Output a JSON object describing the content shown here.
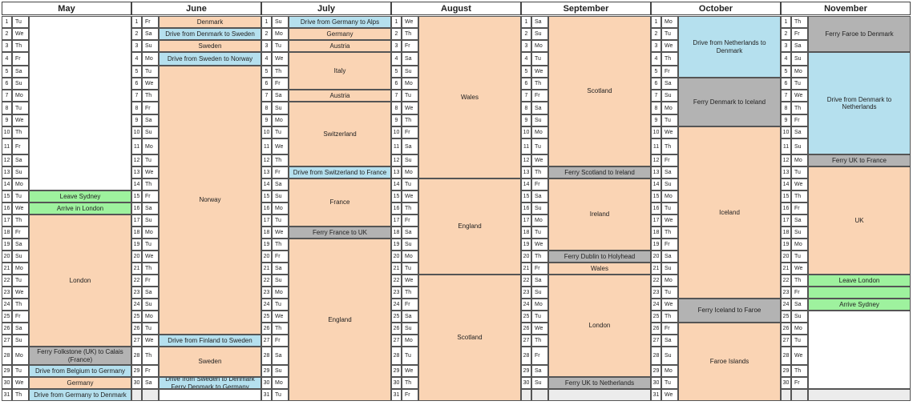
{
  "colors": {
    "travel": "#fad4b4",
    "drive": "#b5e0ee",
    "ferry": "#b3b3b3",
    "flight": "#9ef29e"
  },
  "months": [
    {
      "name": "May",
      "days": [
        [
          "1",
          "Tu"
        ],
        [
          "2",
          "We"
        ],
        [
          "3",
          "Th"
        ],
        [
          "4",
          "Fr"
        ],
        [
          "5",
          "Sa"
        ],
        [
          "6",
          "Su"
        ],
        [
          "7",
          "Mo"
        ],
        [
          "8",
          "Tu"
        ],
        [
          "9",
          "We"
        ],
        [
          "10",
          "Th"
        ],
        [
          "11",
          "Fr"
        ],
        [
          "12",
          "Sa"
        ],
        [
          "13",
          "Su"
        ],
        [
          "14",
          "Mo"
        ],
        [
          "15",
          "Tu"
        ],
        [
          "16",
          "We"
        ],
        [
          "17",
          "Th"
        ],
        [
          "18",
          "Fr"
        ],
        [
          "19",
          "Sa"
        ],
        [
          "20",
          "Su"
        ],
        [
          "21",
          "Mo"
        ],
        [
          "22",
          "Tu"
        ],
        [
          "23",
          "We"
        ],
        [
          "24",
          "Th"
        ],
        [
          "25",
          "Fr"
        ],
        [
          "26",
          "Sa"
        ],
        [
          "27",
          "Su"
        ],
        [
          "28",
          "Mo"
        ],
        [
          "29",
          "Tu"
        ],
        [
          "30",
          "We"
        ],
        [
          "31",
          "Th"
        ]
      ],
      "events": [
        {
          "start": 1,
          "span": 14,
          "label": "",
          "type": "blank"
        },
        {
          "start": 15,
          "span": 1,
          "label": "Leave Sydney",
          "type": "flight"
        },
        {
          "start": 16,
          "span": 1,
          "label": "Arrive in London",
          "type": "flight"
        },
        {
          "start": 17,
          "span": 11,
          "label": "London",
          "type": "travel"
        },
        {
          "start": 28,
          "span": 1,
          "label": "Ferry Folkstone (UK) to Calais (France)",
          "type": "ferry"
        },
        {
          "start": 29,
          "span": 1,
          "label": "Drive from Belgium to Germany",
          "type": "drive"
        },
        {
          "start": 30,
          "span": 1,
          "label": "Germany",
          "type": "travel"
        },
        {
          "start": 31,
          "span": 1,
          "label": "Drive from Germany to Denmark",
          "type": "drive"
        }
      ]
    },
    {
      "name": "June",
      "days": [
        [
          "1",
          "Fr"
        ],
        [
          "2",
          "Sa"
        ],
        [
          "3",
          "Su"
        ],
        [
          "4",
          "Mo"
        ],
        [
          "5",
          "Tu"
        ],
        [
          "6",
          "We"
        ],
        [
          "7",
          "Th"
        ],
        [
          "8",
          "Fr"
        ],
        [
          "9",
          "Sa"
        ],
        [
          "10",
          "Su"
        ],
        [
          "11",
          "Mo"
        ],
        [
          "12",
          "Tu"
        ],
        [
          "13",
          "We"
        ],
        [
          "14",
          "Th"
        ],
        [
          "15",
          "Fr"
        ],
        [
          "16",
          "Sa"
        ],
        [
          "17",
          "Su"
        ],
        [
          "18",
          "Mo"
        ],
        [
          "19",
          "Tu"
        ],
        [
          "20",
          "We"
        ],
        [
          "21",
          "Th"
        ],
        [
          "22",
          "Fr"
        ],
        [
          "23",
          "Sa"
        ],
        [
          "24",
          "Su"
        ],
        [
          "25",
          "Mo"
        ],
        [
          "26",
          "Tu"
        ],
        [
          "27",
          "We"
        ],
        [
          "28",
          "Th"
        ],
        [
          "29",
          "Fr"
        ],
        [
          "30",
          "Sa"
        ],
        [
          "",
          ""
        ]
      ],
      "events": [
        {
          "start": 1,
          "span": 1,
          "label": "Denmark",
          "type": "travel"
        },
        {
          "start": 2,
          "span": 1,
          "label": "Drive from Denmark to Sweden",
          "type": "drive"
        },
        {
          "start": 3,
          "span": 1,
          "label": "Sweden",
          "type": "travel"
        },
        {
          "start": 4,
          "span": 1,
          "label": "Drive from Sweden to Norway",
          "type": "drive"
        },
        {
          "start": 5,
          "span": 22,
          "label": "Norway",
          "type": "travel"
        },
        {
          "start": 27,
          "span": 1,
          "label": "Drive from Finland to Sweden",
          "type": "drive"
        },
        {
          "start": 28,
          "span": 2,
          "label": "Sweden",
          "type": "travel"
        },
        {
          "start": 30,
          "span": 1,
          "label": "Drive from Sweden to Denmark\nFerry Denmark to Germany",
          "type": "drive"
        },
        {
          "start": 31,
          "span": 1,
          "label": "",
          "type": "blank"
        }
      ]
    },
    {
      "name": "July",
      "days": [
        [
          "1",
          "Su"
        ],
        [
          "2",
          "Mo"
        ],
        [
          "3",
          "Tu"
        ],
        [
          "4",
          "We"
        ],
        [
          "5",
          "Th"
        ],
        [
          "6",
          "Fr"
        ],
        [
          "7",
          "Sa"
        ],
        [
          "8",
          "Su"
        ],
        [
          "9",
          "Mo"
        ],
        [
          "10",
          "Tu"
        ],
        [
          "11",
          "We"
        ],
        [
          "12",
          "Th"
        ],
        [
          "13",
          "Fr"
        ],
        [
          "14",
          "Sa"
        ],
        [
          "15",
          "Su"
        ],
        [
          "16",
          "Mo"
        ],
        [
          "17",
          "Tu"
        ],
        [
          "18",
          "We"
        ],
        [
          "19",
          "Th"
        ],
        [
          "20",
          "Fr"
        ],
        [
          "21",
          "Sa"
        ],
        [
          "22",
          "Su"
        ],
        [
          "23",
          "Mo"
        ],
        [
          "24",
          "Tu"
        ],
        [
          "25",
          "We"
        ],
        [
          "26",
          "Th"
        ],
        [
          "27",
          "Fr"
        ],
        [
          "28",
          "Sa"
        ],
        [
          "29",
          "Su"
        ],
        [
          "30",
          "Mo"
        ],
        [
          "31",
          "Tu"
        ]
      ],
      "events": [
        {
          "start": 1,
          "span": 1,
          "label": "Drive from Germany to Alps",
          "type": "drive"
        },
        {
          "start": 2,
          "span": 1,
          "label": "Germany",
          "type": "travel"
        },
        {
          "start": 3,
          "span": 1,
          "label": "Austria",
          "type": "travel"
        },
        {
          "start": 4,
          "span": 3,
          "label": "Italy",
          "type": "travel"
        },
        {
          "start": 7,
          "span": 1,
          "label": "Austria",
          "type": "travel"
        },
        {
          "start": 8,
          "span": 5,
          "label": "Switzerland",
          "type": "travel"
        },
        {
          "start": 13,
          "span": 1,
          "label": "Drive from Switzerland to France",
          "type": "drive"
        },
        {
          "start": 14,
          "span": 4,
          "label": "France",
          "type": "travel"
        },
        {
          "start": 18,
          "span": 1,
          "label": "Ferry France to UK",
          "type": "ferry"
        },
        {
          "start": 19,
          "span": 13,
          "label": "England",
          "type": "travel"
        }
      ]
    },
    {
      "name": "August",
      "days": [
        [
          "1",
          "We"
        ],
        [
          "2",
          "Th"
        ],
        [
          "3",
          "Fr"
        ],
        [
          "4",
          "Sa"
        ],
        [
          "5",
          "Su"
        ],
        [
          "6",
          "Mo"
        ],
        [
          "7",
          "Tu"
        ],
        [
          "8",
          "We"
        ],
        [
          "9",
          "Th"
        ],
        [
          "10",
          "Fr"
        ],
        [
          "11",
          "Sa"
        ],
        [
          "12",
          "Su"
        ],
        [
          "13",
          "Mo"
        ],
        [
          "14",
          "Tu"
        ],
        [
          "15",
          "We"
        ],
        [
          "16",
          "Th"
        ],
        [
          "17",
          "Fr"
        ],
        [
          "18",
          "Sa"
        ],
        [
          "19",
          "Su"
        ],
        [
          "20",
          "Mo"
        ],
        [
          "21",
          "Tu"
        ],
        [
          "22",
          "We"
        ],
        [
          "23",
          "Th"
        ],
        [
          "24",
          "Fr"
        ],
        [
          "25",
          "Sa"
        ],
        [
          "26",
          "Su"
        ],
        [
          "27",
          "Mo"
        ],
        [
          "28",
          "Tu"
        ],
        [
          "29",
          "We"
        ],
        [
          "30",
          "Th"
        ],
        [
          "31",
          "Fr"
        ]
      ],
      "events": [
        {
          "start": 1,
          "span": 13,
          "label": "Wales",
          "type": "travel"
        },
        {
          "start": 14,
          "span": 8,
          "label": "England",
          "type": "travel"
        },
        {
          "start": 22,
          "span": 10,
          "label": "Scotland",
          "type": "travel"
        }
      ]
    },
    {
      "name": "September",
      "days": [
        [
          "1",
          "Sa"
        ],
        [
          "2",
          "Su"
        ],
        [
          "3",
          "Mo"
        ],
        [
          "4",
          "Tu"
        ],
        [
          "5",
          "We"
        ],
        [
          "6",
          "Th"
        ],
        [
          "7",
          "Fr"
        ],
        [
          "8",
          "Sa"
        ],
        [
          "9",
          "Su"
        ],
        [
          "10",
          "Mo"
        ],
        [
          "11",
          "Tu"
        ],
        [
          "12",
          "We"
        ],
        [
          "13",
          "Th"
        ],
        [
          "14",
          "Fr"
        ],
        [
          "15",
          "Sa"
        ],
        [
          "16",
          "Su"
        ],
        [
          "17",
          "Mo"
        ],
        [
          "18",
          "Tu"
        ],
        [
          "19",
          "We"
        ],
        [
          "20",
          "Th"
        ],
        [
          "21",
          "Fr"
        ],
        [
          "22",
          "Sa"
        ],
        [
          "23",
          "Su"
        ],
        [
          "24",
          "Mo"
        ],
        [
          "25",
          "Tu"
        ],
        [
          "26",
          "We"
        ],
        [
          "27",
          "Th"
        ],
        [
          "28",
          "Fr"
        ],
        [
          "29",
          "Sa"
        ],
        [
          "30",
          "Su"
        ],
        [
          "",
          ""
        ]
      ],
      "events": [
        {
          "start": 1,
          "span": 12,
          "label": "Scotland",
          "type": "travel"
        },
        {
          "start": 13,
          "span": 1,
          "label": "Ferry Scotland to Ireland",
          "type": "ferry"
        },
        {
          "start": 14,
          "span": 6,
          "label": "Ireland",
          "type": "travel"
        },
        {
          "start": 20,
          "span": 1,
          "label": "Ferry Dublin to Holyhead",
          "type": "ferry"
        },
        {
          "start": 21,
          "span": 1,
          "label": "Wales",
          "type": "travel"
        },
        {
          "start": 22,
          "span": 8,
          "label": "London",
          "type": "travel"
        },
        {
          "start": 30,
          "span": 1,
          "label": "Ferry UK to Netherlands",
          "type": "ferry"
        },
        {
          "start": 31,
          "span": 1,
          "label": "",
          "type": "grey"
        }
      ]
    },
    {
      "name": "October",
      "days": [
        [
          "1",
          "Mo"
        ],
        [
          "2",
          "Tu"
        ],
        [
          "3",
          "We"
        ],
        [
          "4",
          "Th"
        ],
        [
          "5",
          "Fr"
        ],
        [
          "6",
          "Sa"
        ],
        [
          "7",
          "Su"
        ],
        [
          "8",
          "Mo"
        ],
        [
          "9",
          "Tu"
        ],
        [
          "10",
          "We"
        ],
        [
          "11",
          "Th"
        ],
        [
          "12",
          "Fr"
        ],
        [
          "13",
          "Sa"
        ],
        [
          "14",
          "Su"
        ],
        [
          "15",
          "Mo"
        ],
        [
          "16",
          "Tu"
        ],
        [
          "17",
          "We"
        ],
        [
          "18",
          "Th"
        ],
        [
          "19",
          "Fr"
        ],
        [
          "20",
          "Sa"
        ],
        [
          "21",
          "Su"
        ],
        [
          "22",
          "Mo"
        ],
        [
          "23",
          "Tu"
        ],
        [
          "24",
          "We"
        ],
        [
          "25",
          "Th"
        ],
        [
          "26",
          "Fr"
        ],
        [
          "27",
          "Sa"
        ],
        [
          "28",
          "Su"
        ],
        [
          "29",
          "Mo"
        ],
        [
          "30",
          "Tu"
        ],
        [
          "31",
          "We"
        ]
      ],
      "events": [
        {
          "start": 1,
          "span": 5,
          "label": "Drive from Netherlands to Denmark",
          "type": "drive"
        },
        {
          "start": 6,
          "span": 4,
          "label": "Ferry Denmark to Iceland",
          "type": "ferry"
        },
        {
          "start": 10,
          "span": 14,
          "label": "Iceland",
          "type": "travel"
        },
        {
          "start": 24,
          "span": 2,
          "label": "Ferry Iceland to Faroe",
          "type": "ferry"
        },
        {
          "start": 26,
          "span": 6,
          "label": "Faroe Islands",
          "type": "travel"
        }
      ]
    },
    {
      "name": "November",
      "days": [
        [
          "1",
          "Th"
        ],
        [
          "2",
          "Fr"
        ],
        [
          "3",
          "Sa"
        ],
        [
          "4",
          "Su"
        ],
        [
          "5",
          "Mo"
        ],
        [
          "6",
          "Tu"
        ],
        [
          "7",
          "We"
        ],
        [
          "8",
          "Th"
        ],
        [
          "9",
          "Fr"
        ],
        [
          "10",
          "Sa"
        ],
        [
          "11",
          "Su"
        ],
        [
          "12",
          "Mo"
        ],
        [
          "13",
          "Tu"
        ],
        [
          "14",
          "We"
        ],
        [
          "15",
          "Th"
        ],
        [
          "16",
          "Fr"
        ],
        [
          "17",
          "Sa"
        ],
        [
          "18",
          "Su"
        ],
        [
          "19",
          "Mo"
        ],
        [
          "20",
          "Tu"
        ],
        [
          "21",
          "We"
        ],
        [
          "22",
          "Th"
        ],
        [
          "23",
          "Fr"
        ],
        [
          "24",
          "Sa"
        ],
        [
          "25",
          "Su"
        ],
        [
          "26",
          "Mo"
        ],
        [
          "27",
          "Tu"
        ],
        [
          "28",
          "We"
        ],
        [
          "29",
          "Th"
        ],
        [
          "30",
          "Fr"
        ],
        [
          "",
          ""
        ]
      ],
      "events": [
        {
          "start": 1,
          "span": 3,
          "label": "Ferry Faroe to Denmark",
          "type": "ferry"
        },
        {
          "start": 4,
          "span": 8,
          "label": "Drive from Denmark to Netherlands",
          "type": "drive"
        },
        {
          "start": 12,
          "span": 1,
          "label": "Ferry UK to France",
          "type": "ferry"
        },
        {
          "start": 13,
          "span": 9,
          "label": "UK",
          "type": "travel"
        },
        {
          "start": 22,
          "span": 1,
          "label": "Leave London",
          "type": "flight"
        },
        {
          "start": 23,
          "span": 1,
          "label": "",
          "type": "flight"
        },
        {
          "start": 24,
          "span": 1,
          "label": "Arrive Sydney",
          "type": "flight"
        },
        {
          "start": 25,
          "span": 6,
          "label": "",
          "type": "blank"
        },
        {
          "start": 31,
          "span": 1,
          "label": "",
          "type": "grey"
        }
      ]
    }
  ]
}
